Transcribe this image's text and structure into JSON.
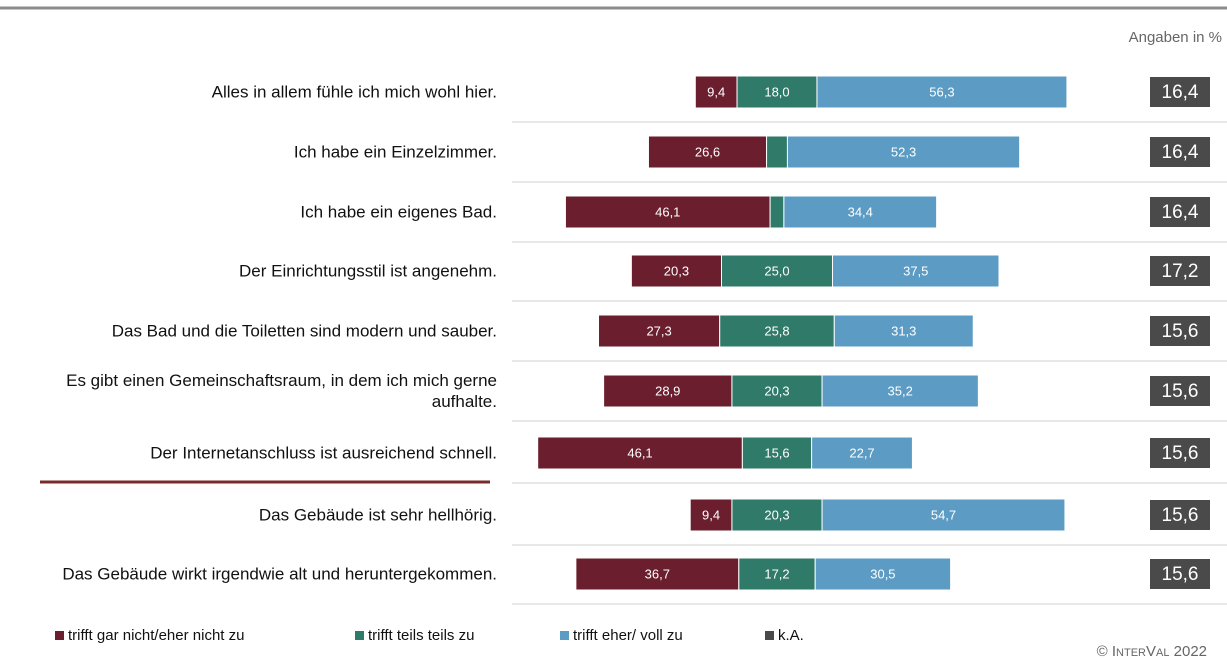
{
  "chart_data": {
    "type": "diverging-bar",
    "note": "Angaben in %",
    "copyright": "© InterVal 2022",
    "categories": [
      "Alles in allem fühle ich mich wohl hier.",
      "Ich habe ein Einzelzimmer.",
      "Ich habe ein eigenes Bad.",
      "Der Einrichtungsstil ist angenehm.",
      "Das Bad und die Toiletten sind modern und sauber.",
      "Es gibt einen Gemeinschaftsraum, in dem ich mich gerne aufhalte.",
      "Der Internetanschluss ist ausreichend schnell.",
      "Das Gebäude ist sehr hellhörig.",
      "Das Gebäude wirkt irgendwie alt und heruntergekommen."
    ],
    "series": [
      {
        "name": "trifft gar nicht/eher nicht zu",
        "color": "#6b1f2e",
        "values": [
          9.4,
          26.6,
          46.1,
          20.3,
          27.3,
          28.9,
          46.1,
          9.4,
          36.7
        ],
        "value_labels": [
          "9,4",
          "26,6",
          "46,1",
          "20,3",
          "27,3",
          "28,9",
          "46,1",
          "9,4",
          "36,7"
        ]
      },
      {
        "name": "trifft teils teils zu",
        "color": "#2f7a69",
        "values": [
          18.0,
          4.7,
          3.1,
          25.0,
          25.8,
          20.3,
          15.6,
          20.3,
          17.2
        ],
        "value_labels": [
          "18,0",
          null,
          null,
          "25,0",
          "25,8",
          "20,3",
          "15,6",
          "20,3",
          "17,2"
        ]
      },
      {
        "name": "trifft eher/ voll zu",
        "color": "#5b9bc4",
        "values": [
          56.3,
          52.3,
          34.4,
          37.5,
          31.3,
          35.2,
          22.7,
          54.7,
          30.5
        ],
        "value_labels": [
          "56,3",
          "52,3",
          "34,4",
          "37,5",
          "31,3",
          "35,2",
          "22,7",
          "54,7",
          "30,5"
        ]
      },
      {
        "name": "k.A.",
        "color": "#4a4a4a",
        "values": [
          16.4,
          16.4,
          16.4,
          17.2,
          15.6,
          15.6,
          15.6,
          15.6,
          15.6
        ],
        "value_labels": [
          "16,4",
          "16,4",
          "16,4",
          "17,2",
          "15,6",
          "15,6",
          "15,6",
          "15,6",
          "15,6"
        ]
      }
    ]
  }
}
